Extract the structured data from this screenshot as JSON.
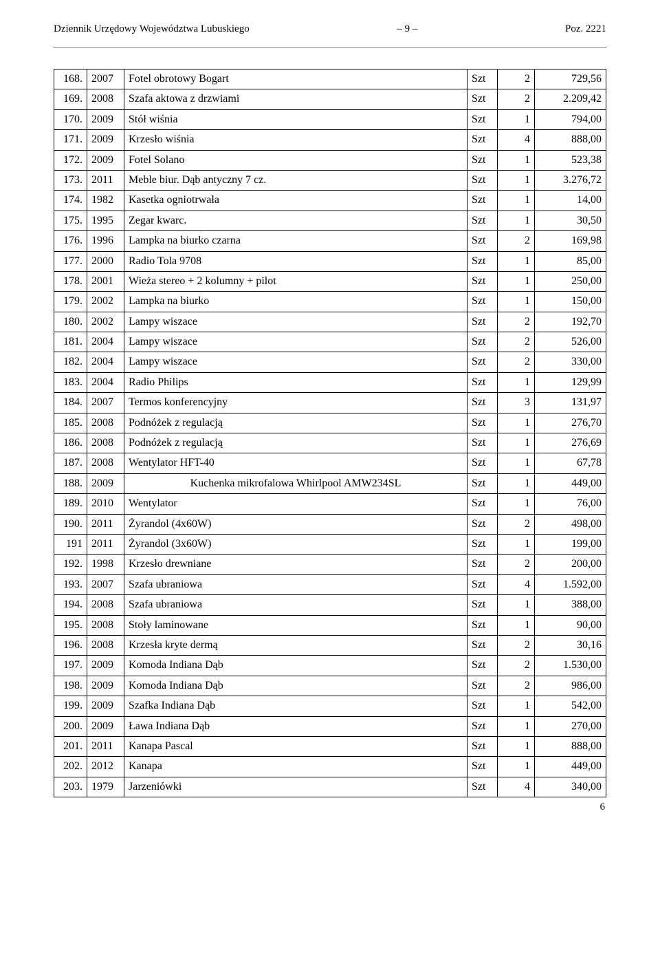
{
  "header": {
    "left": "Dziennik Urzędowy Województwa Lubuskiego",
    "center": "– 9 –",
    "right": "Poz. 2221"
  },
  "table": {
    "columns": {
      "unit_default": "Szt"
    },
    "widths": {
      "lp": 48,
      "year": 54,
      "unit": 44,
      "qty": 54,
      "val": 104
    },
    "rows": [
      {
        "lp": "168.",
        "year": "2007",
        "desc": "Fotel obrotowy Bogart",
        "unit": "Szt",
        "qty": "2",
        "val": "729,56"
      },
      {
        "lp": "169.",
        "year": "2008",
        "desc": "Szafa aktowa z drzwiami",
        "unit": "Szt",
        "qty": "2",
        "val": "2.209,42"
      },
      {
        "lp": "170.",
        "year": "2009",
        "desc": "Stół wiśnia",
        "unit": "Szt",
        "qty": "1",
        "val": "794,00"
      },
      {
        "lp": "171.",
        "year": "2009",
        "desc": "Krzesło wiśnia",
        "unit": "Szt",
        "qty": "4",
        "val": "888,00"
      },
      {
        "lp": "172.",
        "year": "2009",
        "desc": "Fotel Solano",
        "unit": "Szt",
        "qty": "1",
        "val": "523,38"
      },
      {
        "lp": "173.",
        "year": "2011",
        "desc": "Meble biur. Dąb antyczny 7 cz.",
        "unit": "Szt",
        "qty": "1",
        "val": "3.276,72"
      },
      {
        "lp": "174.",
        "year": "1982",
        "desc": "Kasetka ogniotrwała",
        "unit": "Szt",
        "qty": "1",
        "val": "14,00"
      },
      {
        "lp": "175.",
        "year": "1995",
        "desc": "Zegar kwarc.",
        "unit": "Szt",
        "qty": "1",
        "val": "30,50"
      },
      {
        "lp": "176.",
        "year": "1996",
        "desc": "Lampka na biurko czarna",
        "unit": "Szt",
        "qty": "2",
        "val": "169,98"
      },
      {
        "lp": "177.",
        "year": "2000",
        "desc": "Radio Tola 9708",
        "unit": "Szt",
        "qty": "1",
        "val": "85,00"
      },
      {
        "lp": "178.",
        "year": "2001",
        "desc": "Wieża stereo + 2 kolumny + pilot",
        "unit": "Szt",
        "qty": "1",
        "val": "250,00"
      },
      {
        "lp": "179.",
        "year": "2002",
        "desc": "Lampka na biurko",
        "unit": "Szt",
        "qty": "1",
        "val": "150,00"
      },
      {
        "lp": "180.",
        "year": "2002",
        "desc": "Lampy wiszace",
        "unit": "Szt",
        "qty": "2",
        "val": "192,70"
      },
      {
        "lp": "181.",
        "year": "2004",
        "desc": "Lampy wiszace",
        "unit": "Szt",
        "qty": "2",
        "val": "526,00"
      },
      {
        "lp": "182.",
        "year": "2004",
        "desc": "Lampy wiszace",
        "unit": "Szt",
        "qty": "2",
        "val": "330,00"
      },
      {
        "lp": "183.",
        "year": "2004",
        "desc": "Radio Philips",
        "unit": "Szt",
        "qty": "1",
        "val": "129,99"
      },
      {
        "lp": "184.",
        "year": "2007",
        "desc": "Termos konferencyjny",
        "unit": "Szt",
        "qty": "3",
        "val": "131,97"
      },
      {
        "lp": "185.",
        "year": "2008",
        "desc": "Podnóżek z regulacją",
        "unit": "Szt",
        "qty": "1",
        "val": "276,70"
      },
      {
        "lp": "186.",
        "year": "2008",
        "desc": "Podnóżek z regulacją",
        "unit": "Szt",
        "qty": "1",
        "val": "276,69"
      },
      {
        "lp": "187.",
        "year": "2008",
        "desc": "Wentylator HFT-40",
        "unit": "Szt",
        "qty": "1",
        "val": "67,78"
      },
      {
        "lp": "188.",
        "year": "2009",
        "desc": "Kuchenka mikrofalowa Whirlpool AMW234SL",
        "desc_align": "center",
        "unit": "Szt",
        "qty": "1",
        "val": "449,00"
      },
      {
        "lp": "189.",
        "year": "2010",
        "desc": "Wentylator",
        "unit": "Szt",
        "qty": "1",
        "val": "76,00"
      },
      {
        "lp": "190.",
        "year": "2011",
        "desc": "Żyrandol  (4x60W)",
        "unit": "Szt",
        "qty": "2",
        "val": "498,00"
      },
      {
        "lp": "191",
        "year": "2011",
        "desc": "Żyrandol (3x60W)",
        "unit": "Szt",
        "qty": "1",
        "val": "199,00"
      },
      {
        "lp": "192.",
        "year": "1998",
        "desc": "Krzesło drewniane",
        "unit": "Szt",
        "qty": "2",
        "val": "200,00"
      },
      {
        "lp": "193.",
        "year": "2007",
        "desc": "Szafa ubraniowa",
        "unit": "Szt",
        "qty": "4",
        "val": "1.592,00"
      },
      {
        "lp": "194.",
        "year": "2008",
        "desc": "Szafa ubraniowa",
        "unit": "Szt",
        "qty": "1",
        "val": "388,00"
      },
      {
        "lp": "195.",
        "year": "2008",
        "desc": "Stoły laminowane",
        "unit": "Szt",
        "qty": "1",
        "val": "90,00"
      },
      {
        "lp": "196.",
        "year": "2008",
        "desc": "Krzesła kryte dermą",
        "unit": "Szt",
        "qty": "2",
        "val": "30,16"
      },
      {
        "lp": "197.",
        "year": "2009",
        "desc": "Komoda Indiana Dąb",
        "unit": "Szt",
        "qty": "2",
        "val": "1.530,00"
      },
      {
        "lp": "198.",
        "year": "2009",
        "desc": "Komoda Indiana Dąb",
        "unit": "Szt",
        "qty": "2",
        "val": "986,00"
      },
      {
        "lp": "199.",
        "year": "2009",
        "desc": "Szafka Indiana Dąb",
        "unit": "Szt",
        "qty": "1",
        "val": "542,00"
      },
      {
        "lp": "200.",
        "year": "2009",
        "desc": "Ława Indiana Dąb",
        "unit": "Szt",
        "qty": "1",
        "val": "270,00"
      },
      {
        "lp": "201.",
        "year": "2011",
        "desc": "Kanapa Pascal",
        "unit": "Szt",
        "qty": "1",
        "val": "888,00"
      },
      {
        "lp": "202.",
        "year": "2012",
        "desc": "Kanapa",
        "unit": "Szt",
        "qty": "1",
        "val": "449,00"
      },
      {
        "lp": "203.",
        "year": "1979",
        "desc": "Jarzeniówki",
        "unit": "Szt",
        "qty": "4",
        "val": "340,00"
      }
    ]
  },
  "footer": {
    "page_no": "6"
  }
}
